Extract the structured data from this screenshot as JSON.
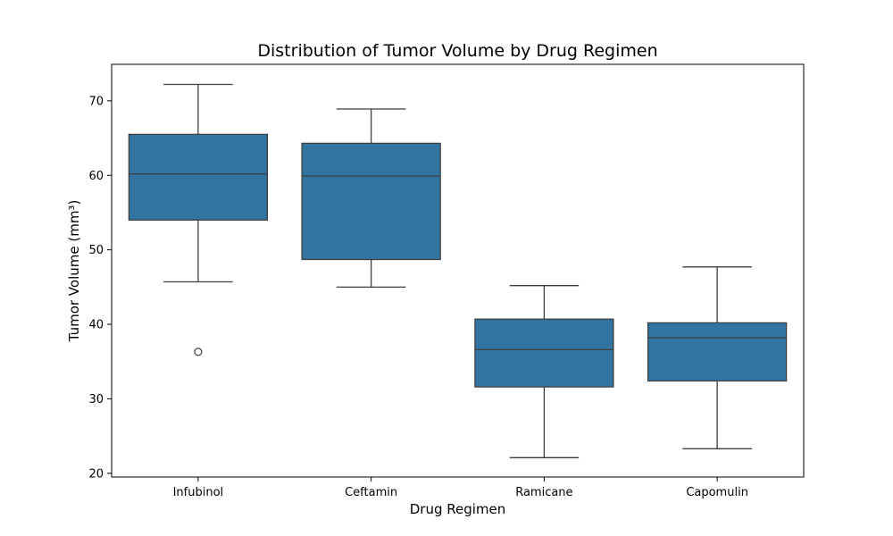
{
  "chart_data": {
    "type": "box",
    "title": "Distribution of Tumor Volume by Drug Regimen",
    "xlabel": "Drug Regimen",
    "ylabel": "Tumor Volume (mm³)",
    "ylim": [
      19.5,
      74.9
    ],
    "yticks": [
      20,
      30,
      40,
      50,
      60,
      70
    ],
    "grid": false,
    "box_color": "#3274a1",
    "line_color": "#3f3f3f",
    "categories": [
      "Infubinol",
      "Ceftamin",
      "Ramicane",
      "Capomulin"
    ],
    "boxes": [
      {
        "name": "Infubinol",
        "whisker_low": 45.7,
        "q1": 54.0,
        "median": 60.2,
        "q3": 65.5,
        "whisker_high": 72.2,
        "outliers": [
          36.3
        ]
      },
      {
        "name": "Ceftamin",
        "whisker_low": 45.0,
        "q1": 48.7,
        "median": 59.9,
        "q3": 64.3,
        "whisker_high": 68.9,
        "outliers": []
      },
      {
        "name": "Ramicane",
        "whisker_low": 22.1,
        "q1": 31.6,
        "median": 36.6,
        "q3": 40.7,
        "whisker_high": 45.2,
        "outliers": []
      },
      {
        "name": "Capomulin",
        "whisker_low": 23.3,
        "q1": 32.4,
        "median": 38.2,
        "q3": 40.2,
        "whisker_high": 47.7,
        "outliers": []
      }
    ]
  }
}
